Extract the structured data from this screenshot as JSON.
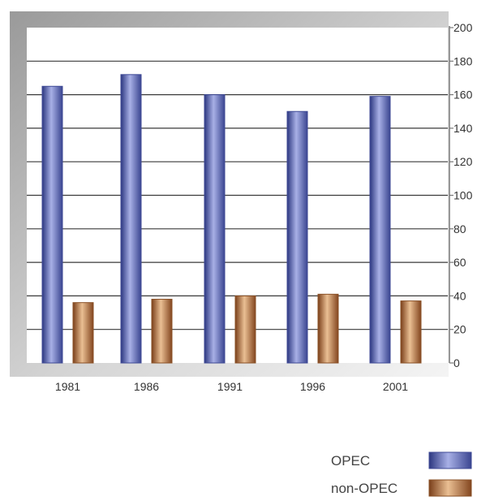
{
  "chart_data": {
    "type": "bar",
    "categories": [
      "1981",
      "1986",
      "1991",
      "1996",
      "2001"
    ],
    "series": [
      {
        "name": "OPEC",
        "values": [
          165,
          172,
          160,
          150,
          159
        ],
        "color": "#4f5aa8"
      },
      {
        "name": "non-OPEC",
        "values": [
          36,
          38,
          40,
          41,
          37
        ],
        "color": "#a9683a"
      }
    ],
    "ylim": [
      0,
      200
    ],
    "yticks": [
      "0",
      "20",
      "40",
      "60",
      "80",
      "100",
      "120",
      "140",
      "160",
      "180",
      "200"
    ],
    "y_axis_side": "right",
    "grid": true,
    "legend_position": "bottom-right",
    "title": "",
    "xlabel": "",
    "ylabel": ""
  }
}
